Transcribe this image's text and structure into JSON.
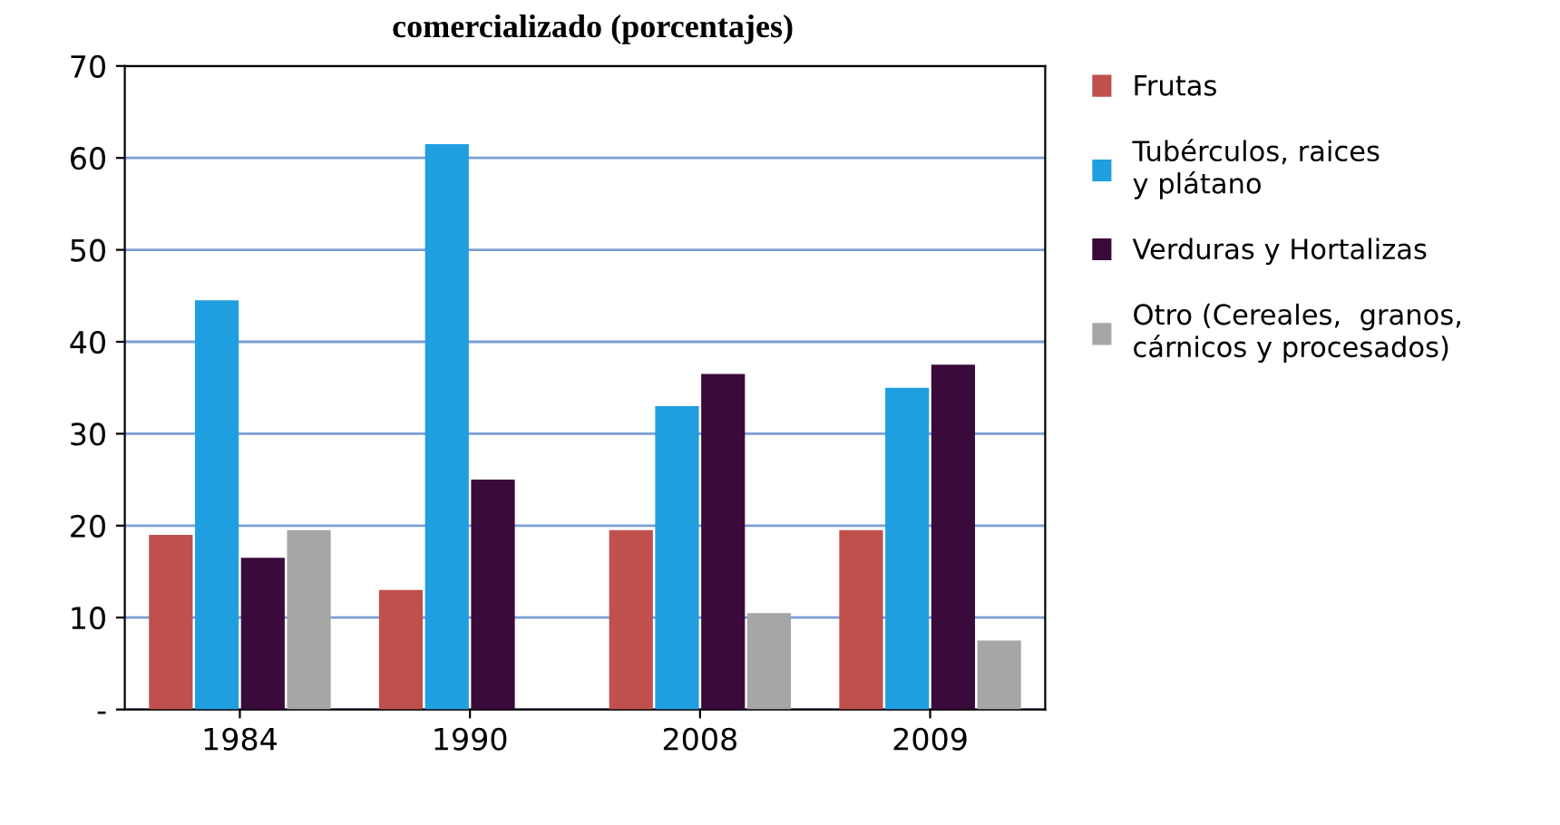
{
  "chart_data": {
    "type": "bar",
    "title": "comercializado (porcentajes)",
    "categories": [
      "1984",
      "1990",
      "2008",
      "2009"
    ],
    "series": [
      {
        "name": "Frutas",
        "color": "#c0504d",
        "values": [
          19,
          13,
          19.5,
          19.5
        ]
      },
      {
        "name": "Tubérculos, raices y plátano",
        "color": "#1f9fe0",
        "values": [
          44.5,
          61.5,
          33,
          35
        ]
      },
      {
        "name": "Verduras y Hortalizas",
        "color": "#3a0a3a",
        "values": [
          16.5,
          25,
          36.5,
          37.5
        ]
      },
      {
        "name": "Otro (Cereales,  granos, cárnicos y procesados)",
        "color": "#a6a6a6",
        "values": [
          19.5,
          0,
          10.5,
          7.5
        ]
      }
    ],
    "ylim": [
      0,
      70
    ],
    "yticks": [
      {
        "value": 0,
        "label": "-"
      },
      10,
      20,
      30,
      40,
      50,
      60,
      70
    ],
    "grid": "y",
    "legend": "right"
  }
}
